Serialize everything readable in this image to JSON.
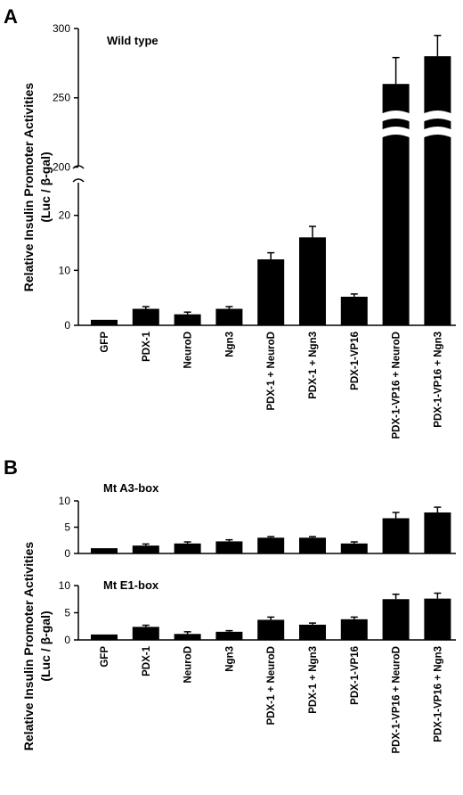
{
  "panel_labels": [
    "A",
    "B"
  ],
  "chart_data": [
    {
      "type": "bar",
      "panel": "A",
      "title": "Wild type",
      "ylabel_line1": "Relative Insulin Promoter Activities",
      "ylabel_line2": "(Luc / β-gal)",
      "axis_break": true,
      "lower_segment": {
        "ylim": [
          0,
          30
        ],
        "ticks": [
          0,
          10,
          20
        ]
      },
      "upper_segment": {
        "ylim": [
          190,
          300
        ],
        "ticks": [
          200,
          250,
          300
        ]
      },
      "categories": [
        "GFP",
        "PDX-1",
        "NeuroD",
        "Ngn3",
        "PDX-1 + NeuroD",
        "PDX-1 + Ngn3",
        "PDX-1-VP16",
        "PDX-1-VP16 + NeuroD",
        "PDX-1-VP16 + Ngn3"
      ],
      "values": [
        1,
        3,
        2,
        3,
        12,
        16,
        5.2,
        260,
        280
      ],
      "errors": [
        0,
        0.4,
        0.4,
        0.4,
        1.2,
        2,
        0.5,
        19,
        15
      ],
      "bar_color": "#000000",
      "grid": false
    },
    {
      "type": "bar",
      "panel": "B",
      "title": "Mt A3-box",
      "ylim": [
        0,
        10
      ],
      "ticks": [
        0,
        5,
        10
      ],
      "categories": [
        "GFP",
        "PDX-1",
        "NeuroD",
        "Ngn3",
        "PDX-1 + NeuroD",
        "PDX-1 + Ngn3",
        "PDX-1-VP16",
        "PDX-1-VP16 + NeuroD",
        "PDX-1-VP16 + Ngn3"
      ],
      "values": [
        1,
        1.5,
        1.9,
        2.3,
        3,
        3,
        1.9,
        6.7,
        7.8
      ],
      "errors": [
        0,
        0.3,
        0.3,
        0.3,
        0.2,
        0.2,
        0.3,
        1.1,
        1.0
      ],
      "bar_color": "#000000",
      "grid": false
    },
    {
      "type": "bar",
      "panel": "B",
      "title": "Mt E1-box",
      "ylim": [
        0,
        10
      ],
      "ticks": [
        0,
        5,
        10
      ],
      "ylabel_line1": "Relative Insulin Promoter Activities",
      "ylabel_line2": "(Luc / β-gal)",
      "categories": [
        "GFP",
        "PDX-1",
        "NeuroD",
        "Ngn3",
        "PDX-1 + NeuroD",
        "PDX-1 + Ngn3",
        "PDX-1-VP16",
        "PDX-1-VP16 + NeuroD",
        "PDX-1-VP16 + Ngn3"
      ],
      "values": [
        1,
        2.4,
        1.1,
        1.5,
        3.7,
        2.8,
        3.8,
        7.5,
        7.6
      ],
      "errors": [
        0,
        0.3,
        0.4,
        0.2,
        0.5,
        0.3,
        0.4,
        0.9,
        1.0
      ],
      "bar_color": "#000000",
      "grid": false
    }
  ]
}
